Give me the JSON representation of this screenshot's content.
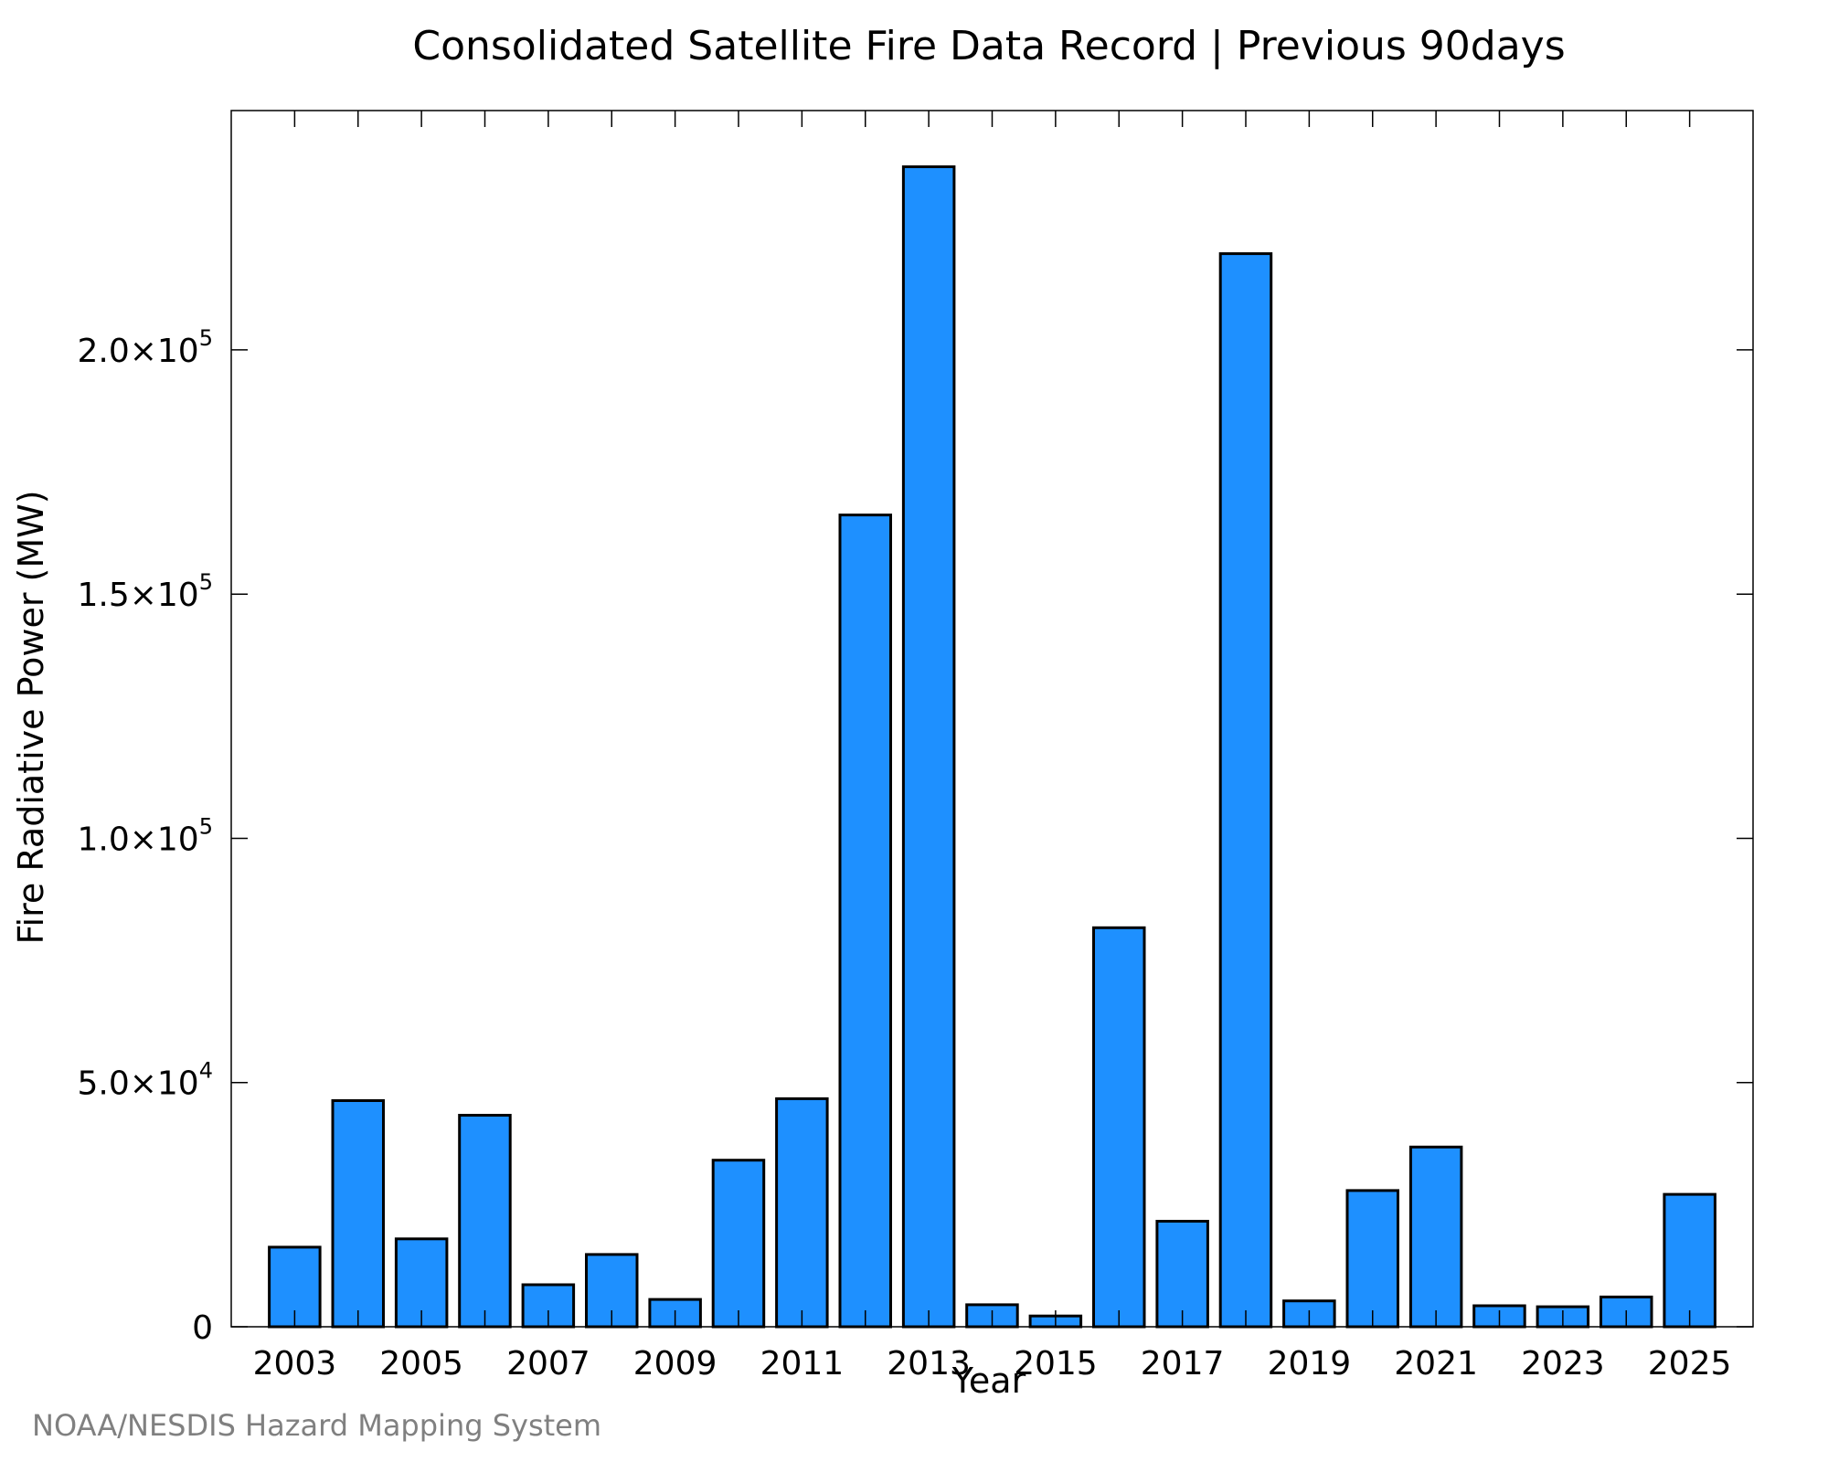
{
  "chart_data": {
    "type": "bar",
    "title": "Consolidated Satellite Fire Data Record | Previous 90days",
    "xlabel": "Year",
    "ylabel": "Fire Radiative Power (MW)",
    "categories": [
      "2003",
      "2004",
      "2005",
      "2006",
      "2007",
      "2008",
      "2009",
      "2010",
      "2011",
      "2012",
      "2013",
      "2014",
      "2015",
      "2016",
      "2017",
      "2018",
      "2019",
      "2020",
      "2021",
      "2022",
      "2023",
      "2024",
      "2025"
    ],
    "values": [
      16300,
      46300,
      18000,
      43300,
      8600,
      14800,
      5600,
      34100,
      46700,
      166200,
      237500,
      4500,
      2200,
      81700,
      21600,
      219700,
      5300,
      27900,
      36800,
      4300,
      4100,
      6100,
      27100
    ],
    "ylim": [
      0,
      249000
    ],
    "xlim": [
      2002.0,
      2026.0
    ],
    "x_tick_labels": [
      "2003",
      "2005",
      "2007",
      "2009",
      "2011",
      "2013",
      "2015",
      "2017",
      "2019",
      "2021",
      "2023",
      "2025"
    ],
    "y_ticks": [
      {
        "value": 0,
        "mantissa": "0",
        "exponent": ""
      },
      {
        "value": 50000,
        "mantissa": "5.0×10",
        "exponent": "4"
      },
      {
        "value": 100000,
        "mantissa": "1.0×10",
        "exponent": "5"
      },
      {
        "value": 150000,
        "mantissa": "1.5×10",
        "exponent": "5"
      },
      {
        "value": 200000,
        "mantissa": "2.0×10",
        "exponent": "5"
      }
    ],
    "bar_color": "#1E90FF",
    "bar_edge_color": "#000000",
    "grid": false,
    "legend": "none"
  },
  "credit": "NOAA/NESDIS Hazard Mapping System"
}
